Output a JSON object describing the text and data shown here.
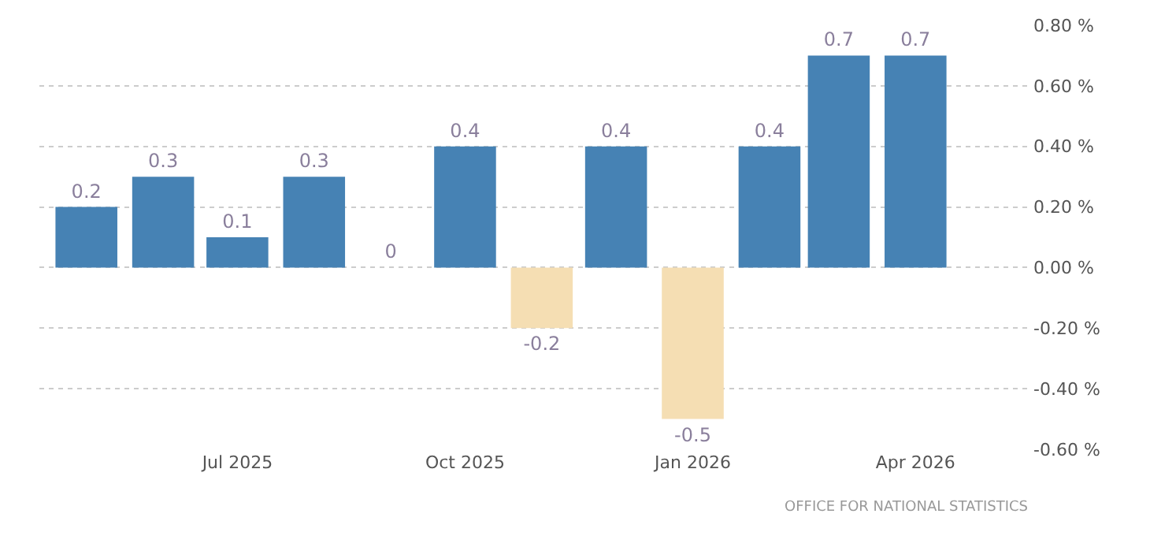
{
  "chart_data": {
    "type": "bar",
    "x": [
      "2025-05",
      "2025-06",
      "2025-07",
      "2025-08",
      "2025-09",
      "2025-10",
      "2025-11",
      "2025-12",
      "2026-01",
      "2026-02",
      "2026-03",
      "2026-04"
    ],
    "values": [
      0.2,
      0.3,
      0.1,
      0.3,
      0,
      0.4,
      -0.2,
      0.4,
      -0.5,
      0.4,
      0.7,
      0.7
    ],
    "colors": [
      "#4682b4",
      "#4682b4",
      "#4682b4",
      "#4682b4",
      "#4682b4",
      "#4682b4",
      "#f5deb3",
      "#4682b4",
      "#f5deb3",
      "#4682b4",
      "#4682b4",
      "#4682b4"
    ],
    "data_labels": true,
    "xlim": [
      "2025-04-12",
      "2026-05-18"
    ],
    "xticks": [
      {
        "value": "2025-07",
        "label": "Jul 2025"
      },
      {
        "value": "2025-10",
        "label": "Oct 2025"
      },
      {
        "value": "2026-01",
        "label": "Jan 2026"
      },
      {
        "value": "2026-04",
        "label": "Apr 2026"
      }
    ],
    "ylim": [
      -0.6,
      0.8
    ],
    "yticks": [
      {
        "value": 0.8,
        "label": "0.80 %"
      },
      {
        "value": 0.6,
        "label": "0.60 %"
      },
      {
        "value": 0.4,
        "label": "0.40 %"
      },
      {
        "value": 0.2,
        "label": "0.20 %"
      },
      {
        "value": 0,
        "label": "0.00 %"
      },
      {
        "value": -0.2,
        "label": "-0.20 %"
      },
      {
        "value": -0.4,
        "label": "-0.40 %"
      },
      {
        "value": -0.6,
        "label": "-0.60 %"
      }
    ],
    "grid": "y",
    "annotations": [
      "OFFICE FOR NATIONAL STATISTICS"
    ]
  }
}
